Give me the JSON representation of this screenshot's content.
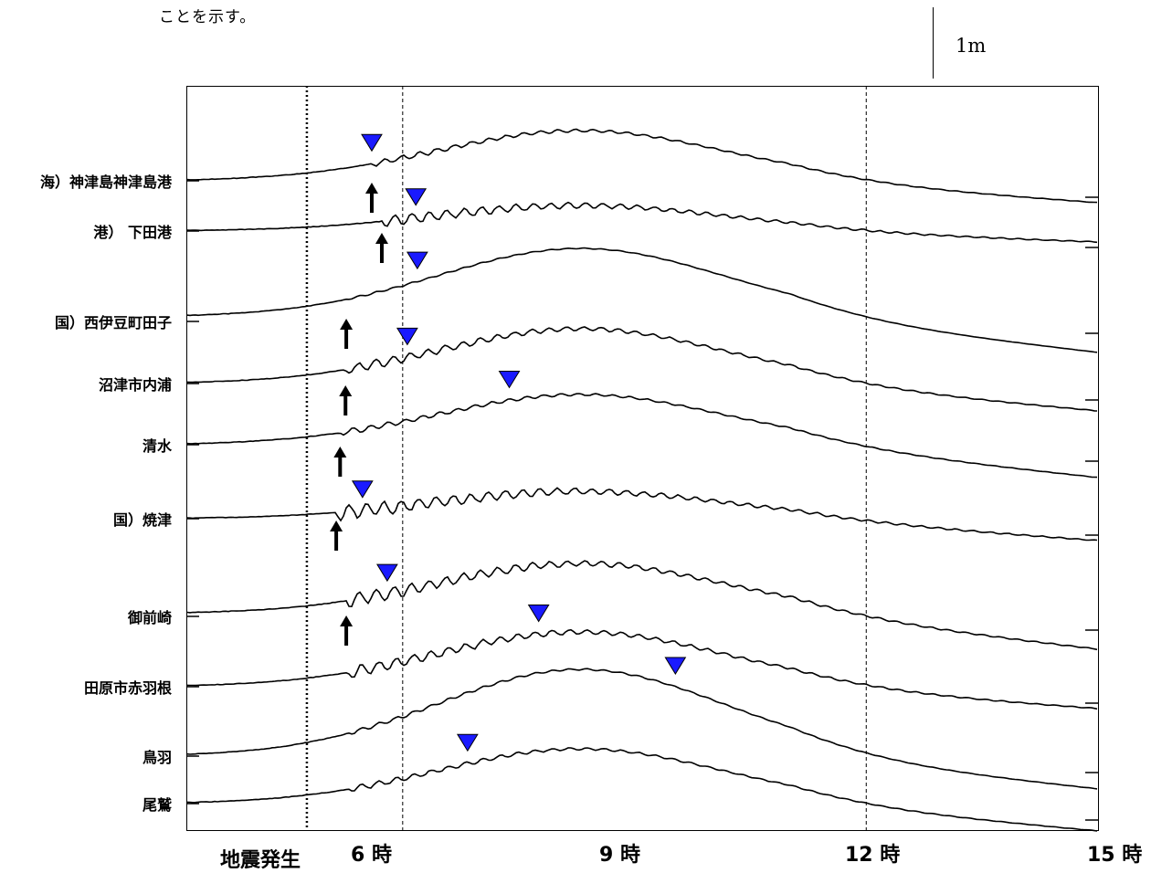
{
  "caption": "ことを示す。",
  "scale": {
    "label": "1m"
  },
  "colors": {
    "peak_marker": "#1a1aff",
    "trace": "#000000",
    "arrival_arrow": "#000000"
  },
  "chart_data": {
    "type": "line",
    "xlabel": "",
    "ylabel": "",
    "x_ticks": [
      "6 時",
      "9 時",
      "12 時",
      "15 時"
    ],
    "x_range_hours": [
      3.2,
      15.0
    ],
    "earthquake_time_hour": 4.76,
    "earthquake_label": "地震発生",
    "grid": {
      "vertical_dashed_at_hours": [
        6,
        12
      ],
      "dotted_line_at_hour": 4.76
    },
    "series": [
      {
        "name": "海）神津島神津島港",
        "arrival_hour": 5.6,
        "max_hour": 5.6
      },
      {
        "name": "港） 下田港",
        "arrival_hour": 5.73,
        "max_hour": 6.17
      },
      {
        "name": "国）西伊豆町田子",
        "arrival_hour": 5.27,
        "max_hour": 6.19
      },
      {
        "name": "沼津市内浦",
        "arrival_hour": 5.26,
        "max_hour": 6.06
      },
      {
        "name": "清水",
        "arrival_hour": 5.19,
        "max_hour": 7.38
      },
      {
        "name": "国）焼津",
        "arrival_hour": 5.14,
        "max_hour": 5.48
      },
      {
        "name": "御前崎",
        "arrival_hour": 5.27,
        "max_hour": 5.8
      },
      {
        "name": "田原市赤羽根",
        "arrival_hour": null,
        "max_hour": 7.76
      },
      {
        "name": "鳥羽",
        "arrival_hour": null,
        "max_hour": 9.53
      },
      {
        "name": "尾鷲",
        "arrival_hour": null,
        "max_hour": 6.84
      }
    ]
  }
}
